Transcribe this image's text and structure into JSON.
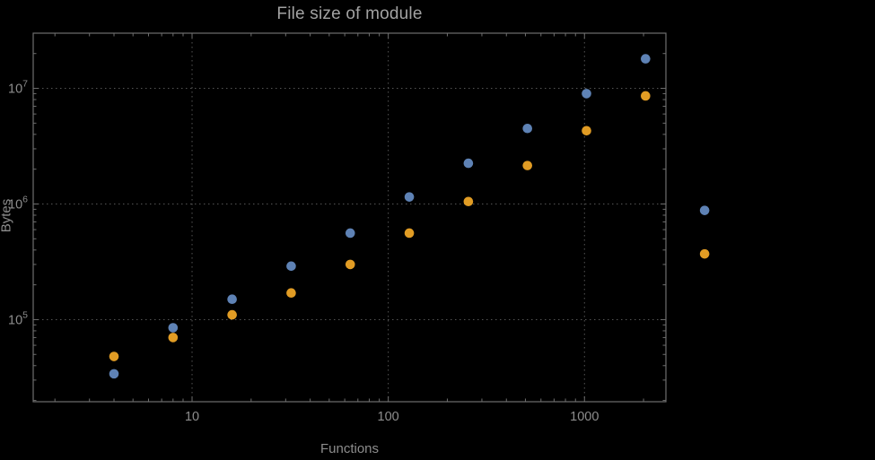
{
  "chart_data": {
    "type": "scatter",
    "title": "File size of module",
    "xlabel": "Functions",
    "ylabel": "Bytes",
    "xscale": "log",
    "yscale": "log",
    "xlim": [
      1.55,
      2600
    ],
    "ylim": [
      19500,
      30000000
    ],
    "x_major_ticks": [
      10,
      100,
      1000
    ],
    "x_major_tick_labels": [
      "10",
      "100",
      "1000"
    ],
    "y_major_ticks": [
      100000,
      1000000,
      10000000
    ],
    "y_major_tick_exponents": [
      5,
      6,
      7
    ],
    "grid": "dotted",
    "legend": "none",
    "series": [
      {
        "name": "series-blue",
        "color": "#5e82b5",
        "points": [
          [
            4,
            34000
          ],
          [
            8,
            85000
          ],
          [
            16,
            150000
          ],
          [
            32,
            290000
          ],
          [
            64,
            560000
          ],
          [
            128,
            1150000
          ],
          [
            256,
            2250000
          ],
          [
            512,
            4500000
          ],
          [
            1024,
            9000000
          ],
          [
            2048,
            18000000
          ],
          [
            4096,
            880000
          ]
        ]
      },
      {
        "name": "series-orange",
        "color": "#e19c24",
        "points": [
          [
            4,
            48000
          ],
          [
            8,
            70000
          ],
          [
            16,
            110000
          ],
          [
            32,
            170000
          ],
          [
            64,
            300000
          ],
          [
            128,
            560000
          ],
          [
            256,
            1050000
          ],
          [
            512,
            2150000
          ],
          [
            1024,
            4300000
          ],
          [
            2048,
            8600000
          ],
          [
            4096,
            370000
          ]
        ]
      }
    ]
  },
  "colors": {
    "background": "#000000",
    "frame": "#6e6e6e",
    "grid": "#555555",
    "tick_label": "#8d8d8d",
    "title": "#a2a2a2",
    "axis_label": "#8d8d8d"
  }
}
